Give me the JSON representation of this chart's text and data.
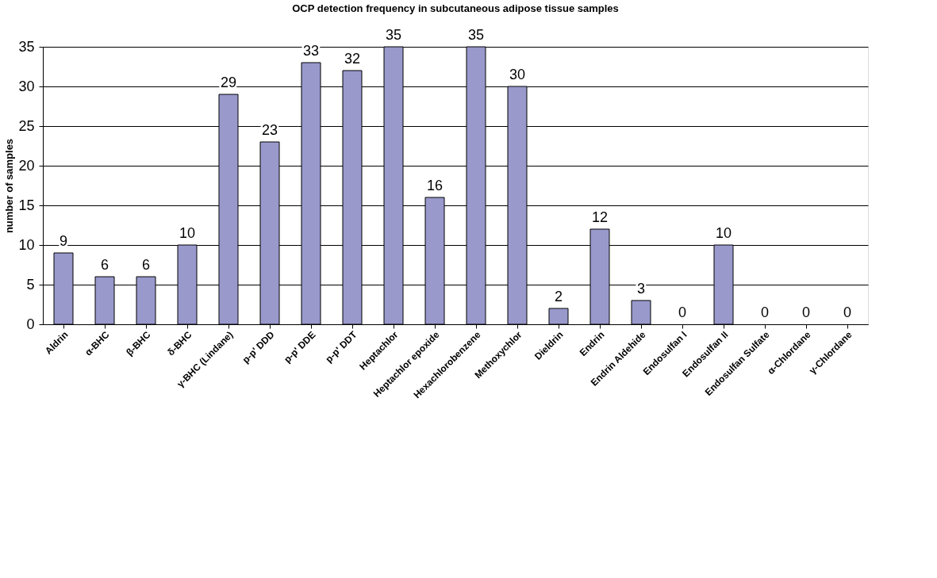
{
  "chart_data": {
    "type": "bar",
    "title": "OCP detection frequency in subcutaneous adipose tissue samples",
    "ylabel": "number of samples",
    "categories": [
      "Aldrin",
      "α-BHC",
      "β-BHC",
      "δ-BHC",
      "γ-BHC (Lindane)",
      "p-p' DDD",
      "p-p' DDE",
      "p-p' DDT",
      "Heptachlor",
      "Heptachlor epoxide",
      "Hexachlorobenzene",
      "Methoxychlor",
      "Dieldrin",
      "Endrin",
      "Endrin Aldehide",
      "Endosulfan I",
      "Endosulfan II",
      "Endosulfan Sulfate",
      "α-Chlordane",
      "γ-Chlordane"
    ],
    "values": [
      9,
      6,
      6,
      10,
      29,
      23,
      33,
      32,
      35,
      16,
      35,
      30,
      2,
      12,
      3,
      0,
      10,
      0,
      0,
      0
    ],
    "color": "#9999cc",
    "ylim": [
      0,
      35
    ],
    "yticks": [
      0,
      5,
      10,
      15,
      20,
      25,
      30,
      35
    ],
    "grid": "y",
    "data_labels": true
  }
}
